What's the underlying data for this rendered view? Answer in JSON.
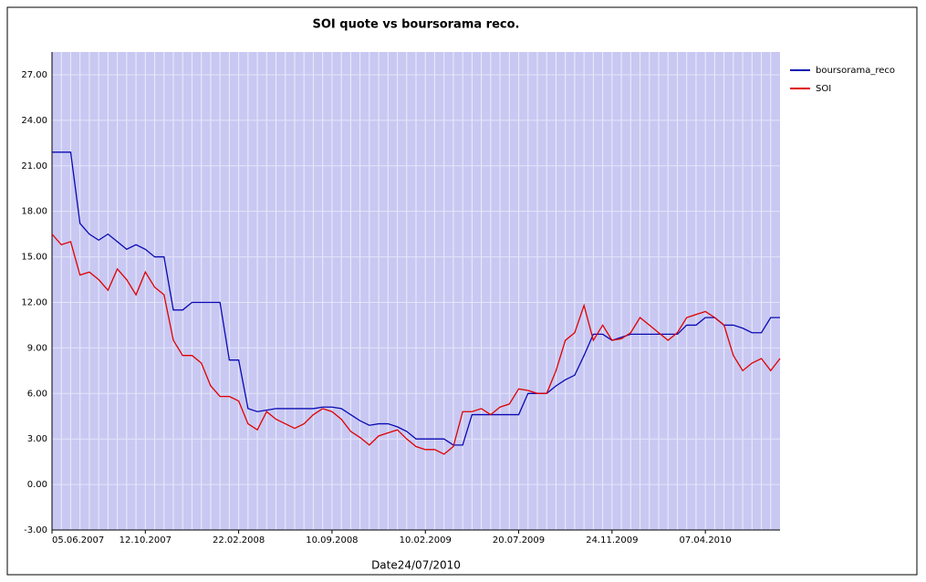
{
  "chart_data": {
    "type": "line",
    "title": "SOI quote vs boursorama reco.",
    "x_label": "Date24/07/2010",
    "categories": [
      "05.06.2007",
      null,
      null,
      null,
      null,
      null,
      null,
      null,
      null,
      null,
      "12.10.2007",
      null,
      null,
      null,
      null,
      null,
      null,
      null,
      null,
      null,
      "22.02.2008",
      null,
      null,
      null,
      null,
      null,
      null,
      null,
      null,
      null,
      "10.09.2008",
      null,
      null,
      null,
      null,
      null,
      null,
      null,
      null,
      null,
      "10.02.2009",
      null,
      null,
      null,
      null,
      null,
      null,
      null,
      null,
      null,
      "20.07.2009",
      null,
      null,
      null,
      null,
      null,
      null,
      null,
      null,
      null,
      "24.11.2009",
      null,
      null,
      null,
      null,
      null,
      null,
      null,
      null,
      null,
      "07.04.2010",
      null,
      null,
      null,
      null,
      null,
      null,
      null,
      null
    ],
    "series": [
      {
        "name": "boursorama_reco",
        "color": "#0a0ab4",
        "values": [
          21.9,
          21.9,
          21.9,
          17.2,
          16.5,
          16.1,
          16.5,
          16,
          15.5,
          15.8,
          15.5,
          15,
          15,
          11.5,
          11.5,
          12,
          12,
          12,
          12,
          8.2,
          8.2,
          5,
          4.8,
          4.9,
          5,
          5,
          5,
          5,
          5,
          5.1,
          5.1,
          5,
          4.6,
          4.2,
          3.9,
          4,
          4,
          3.8,
          3.5,
          3,
          3,
          3,
          3,
          2.6,
          2.6,
          4.6,
          4.6,
          4.6,
          4.6,
          4.6,
          4.6,
          6,
          6,
          6,
          6.5,
          6.9,
          7.2,
          8.5,
          9.9,
          9.9,
          9.5,
          9.7,
          9.9,
          9.9,
          9.9,
          9.9,
          9.9,
          9.9,
          10.5,
          10.5,
          11,
          11,
          10.5,
          10.5,
          10.3,
          10,
          10,
          11,
          11
        ]
      },
      {
        "name": "SOI",
        "color": "#e00000",
        "values": [
          16.5,
          15.8,
          16,
          13.8,
          14,
          13.5,
          12.8,
          14.2,
          13.5,
          12.5,
          14,
          13,
          12.5,
          9.5,
          8.5,
          8.5,
          8,
          6.5,
          5.8,
          5.8,
          5.5,
          4,
          3.6,
          4.8,
          4.3,
          4,
          3.7,
          4,
          4.6,
          5,
          4.8,
          4.3,
          3.5,
          3.1,
          2.6,
          3.2,
          3.4,
          3.6,
          3,
          2.5,
          2.3,
          2.3,
          2,
          2.5,
          4.8,
          4.8,
          5,
          4.6,
          5.1,
          5.3,
          6.3,
          6.2,
          6,
          6,
          7.5,
          9.5,
          10,
          11.8,
          9.5,
          10.5,
          9.5,
          9.6,
          10,
          11,
          10.5,
          10,
          9.5,
          10,
          11,
          11.2,
          11.4,
          11,
          10.5,
          8.5,
          7.5,
          8,
          8.3,
          7.5,
          8.3
        ]
      }
    ],
    "ylim": [
      -3,
      28.5
    ],
    "yticks": [
      {
        "value": -3,
        "label": "-3.00"
      },
      {
        "value": 0,
        "label": "0.00"
      },
      {
        "value": 3,
        "label": "3.00"
      },
      {
        "value": 6,
        "label": "6.00"
      },
      {
        "value": 9,
        "label": "9.00"
      },
      {
        "value": 12,
        "label": "12.00"
      },
      {
        "value": 15,
        "label": "15.00"
      },
      {
        "value": 18,
        "label": "18.00"
      },
      {
        "value": 21,
        "label": "21.00"
      },
      {
        "value": 24,
        "label": "24.00"
      },
      {
        "value": 27,
        "label": "27.00"
      }
    ],
    "grid": true,
    "legend": "right"
  }
}
